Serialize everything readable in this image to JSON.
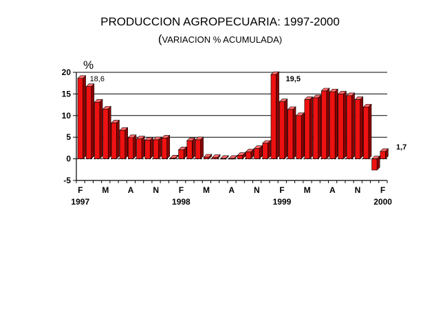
{
  "title": "PRODUCCION AGROPECUARIA: 1997-2000",
  "subtitle_open": "(",
  "subtitle_text": "VARIACION % ACUMULADA)",
  "chart_data": {
    "type": "bar",
    "title": "PRODUCCION AGROPECUARIA: 1997-2000",
    "subtitle": "(VARIACION % ACUMULADA)",
    "ylabel": "%",
    "xlabel": "",
    "ylim": [
      -5,
      20
    ],
    "yticks": [
      20,
      15,
      10,
      5,
      0,
      -5
    ],
    "grid": true,
    "legend": "none",
    "bar_color": "#ee1111",
    "series": [
      {
        "values": [
          18.6,
          16.7,
          13.1,
          11.5,
          8.3,
          6.6,
          4.9,
          4.6,
          4.3,
          4.4,
          4.8,
          0.2,
          2.1,
          4.2,
          4.4,
          0.4,
          0.3,
          0.1,
          0.1,
          0.8,
          1.6,
          2.4,
          3.6,
          19.5,
          13.2,
          11.4,
          10.0,
          13.7,
          14.1,
          15.7,
          15.5,
          15.0,
          14.6,
          13.7,
          12.0,
          -2.6,
          1.7
        ]
      }
    ],
    "x_tick_labels": [
      "F",
      "M",
      "A",
      "N",
      "F",
      "M",
      "A",
      "N",
      "F",
      "M",
      "A",
      "N",
      "F"
    ],
    "x_tick_bars": [
      0,
      3,
      6,
      9,
      12,
      15,
      18,
      21,
      24,
      27,
      30,
      33,
      36
    ],
    "year_labels": [
      {
        "label": "1997",
        "bar": 0
      },
      {
        "label": "1998",
        "bar": 12
      },
      {
        "label": "1999",
        "bar": 24
      },
      {
        "label": "2000",
        "bar": 36
      }
    ],
    "data_labels": [
      {
        "bar": 0,
        "text": "18,6",
        "bold": false
      },
      {
        "bar": 23,
        "text": "19,5",
        "bold": true
      },
      {
        "bar": 36,
        "text": "1,7",
        "bold": true
      }
    ]
  }
}
